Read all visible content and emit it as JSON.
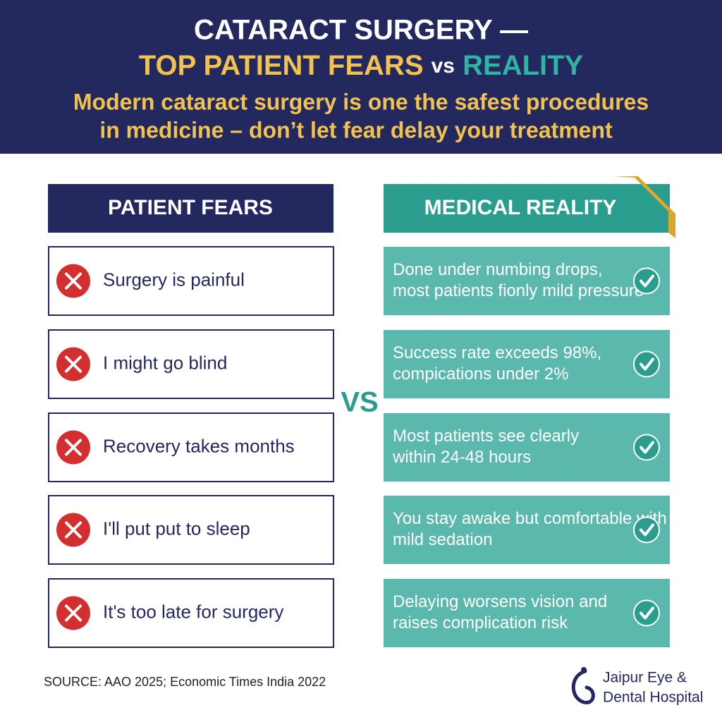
{
  "header": {
    "title_line1": "CATARACT SURGERY —",
    "title_line2": [
      "TOP PATIENT FEARS",
      "vs",
      "REALITY"
    ],
    "subtitle": [
      "Modern cataract surgery is one the safest procedures",
      "in medicine – don’t let fear delay your treatment"
    ]
  },
  "fears": {
    "heading": "PATIENT FEARS",
    "items": [
      "Surgery is painful",
      "I might go blind",
      "Recovery takes months",
      "I'll put put to sleep",
      "It's too late for surgery"
    ]
  },
  "vs": "VS",
  "reality": {
    "heading": "MEDICAL REALITY",
    "items": [
      [
        "Done under numbing drops,",
        "most patients fionly mild pressure"
      ],
      [
        "Success rate exceeds 98%,",
        "compications under 2%"
      ],
      [
        "Most patients see clearly",
        "within 24-48 hours"
      ],
      [
        "You stay awake but comfortable with",
        "mild sedation"
      ],
      [
        "Delaying worsens vision and",
        "raises complication risk"
      ]
    ]
  },
  "footer": {
    "source": "SOURCE: AAO 2025; Economic Times India 2022",
    "logo": [
      "Jaipur Eye &",
      "Dental Hospital"
    ]
  }
}
